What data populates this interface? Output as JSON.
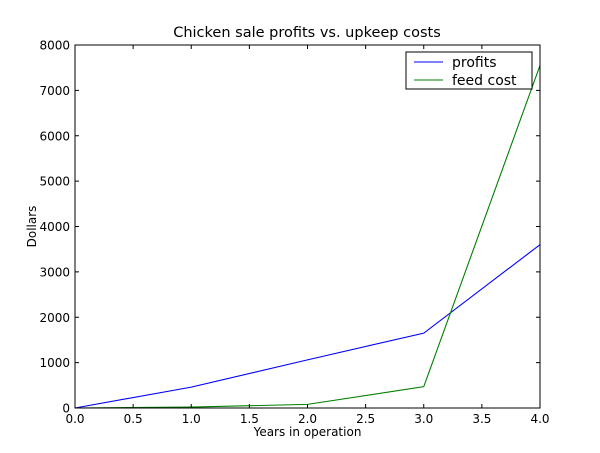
{
  "chart_data": {
    "type": "line",
    "title": "Chicken sale profits vs. upkeep costs",
    "xlabel": "Years in operation",
    "ylabel": "Dollars",
    "xlim": [
      0.0,
      4.0
    ],
    "ylim": [
      0,
      8000
    ],
    "grid": false,
    "legend_position": "top-right",
    "x": [
      0,
      1,
      2,
      3,
      4
    ],
    "x_ticks": [
      0.0,
      0.5,
      1.0,
      1.5,
      2.0,
      2.5,
      3.0,
      3.5,
      4.0
    ],
    "x_tick_labels": [
      "0.0",
      "0.5",
      "1.0",
      "1.5",
      "2.0",
      "2.5",
      "3.0",
      "3.5",
      "4.0"
    ],
    "y_ticks": [
      0,
      1000,
      2000,
      3000,
      4000,
      5000,
      6000,
      7000,
      8000
    ],
    "y_tick_labels": [
      "0",
      "1000",
      "2000",
      "3000",
      "4000",
      "5000",
      "6000",
      "7000",
      "8000"
    ],
    "series": [
      {
        "name": "profits",
        "color": "#0000ff",
        "values": [
          0,
          460,
          1060,
          1650,
          3600
        ]
      },
      {
        "name": "feed cost",
        "color": "#008000",
        "values": [
          0,
          20,
          80,
          470,
          7550
        ]
      }
    ]
  }
}
